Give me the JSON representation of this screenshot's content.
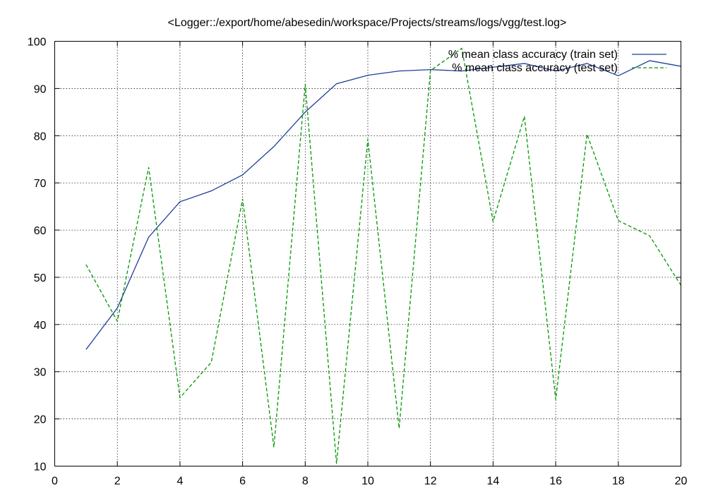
{
  "chart_data": {
    "type": "line",
    "title": "<Logger::/export/home/abesedin/workspace/Projects/streams/logs/vgg/test.log>",
    "xlabel": "",
    "ylabel": "",
    "xlim": [
      0,
      20
    ],
    "ylim": [
      10,
      100
    ],
    "xticks": [
      0,
      2,
      4,
      6,
      8,
      10,
      12,
      14,
      16,
      18,
      20
    ],
    "yticks": [
      10,
      20,
      30,
      40,
      50,
      60,
      70,
      80,
      90,
      100
    ],
    "grid": true,
    "legend_position": "top-right",
    "series": [
      {
        "name": "% mean class accuracy (train set)",
        "color": "#1f3f99",
        "dash": "solid",
        "x": [
          1,
          2,
          3,
          4,
          5,
          6,
          7,
          8,
          9,
          10,
          11,
          12,
          13,
          14,
          15,
          16,
          17,
          18,
          19,
          20
        ],
        "y": [
          34.7,
          43.5,
          58.5,
          66.0,
          68.3,
          71.7,
          77.7,
          85.0,
          91.0,
          92.8,
          93.7,
          94.0,
          93.7,
          94.5,
          95.3,
          93.7,
          95.3,
          92.7,
          95.9,
          94.7
        ]
      },
      {
        "name": "% mean class accuracy (test set)",
        "color": "#009900",
        "dash": "dashed",
        "x": [
          1,
          2,
          3,
          4,
          5,
          6,
          7,
          8,
          9,
          10,
          11,
          12,
          13,
          14,
          15,
          16,
          17,
          18,
          19,
          20
        ],
        "y": [
          52.7,
          40.7,
          73.3,
          24.5,
          32.0,
          66.6,
          14.0,
          90.9,
          10.5,
          79.3,
          18.0,
          93.8,
          98.5,
          61.8,
          84.1,
          24.1,
          80.3,
          62.0,
          58.8,
          48.3
        ]
      }
    ]
  }
}
